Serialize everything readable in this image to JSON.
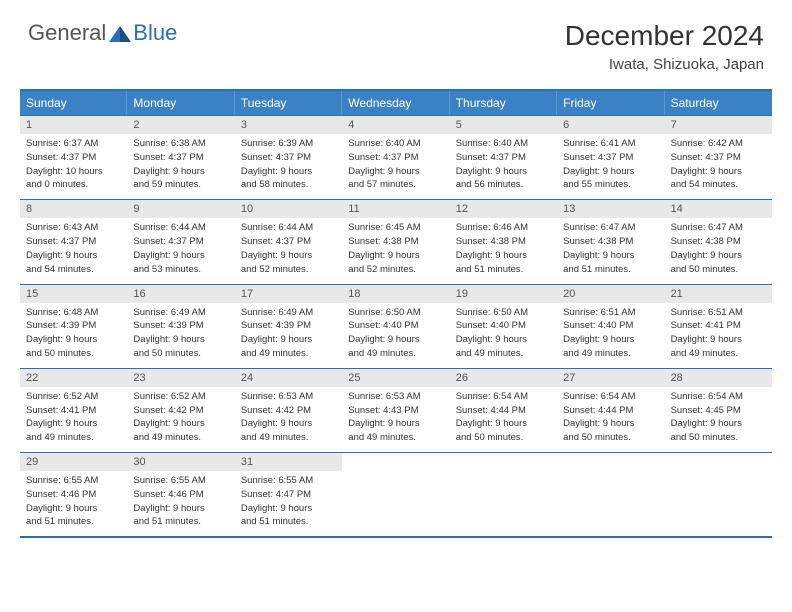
{
  "logo": {
    "part1": "General",
    "part2": "Blue"
  },
  "title": "December 2024",
  "location": "Iwata, Shizuoka, Japan",
  "colors": {
    "header_bg": "#3b82c4",
    "border": "#2a6fb5",
    "daynum_bg": "#e8e8e8",
    "text": "#333333"
  },
  "weekdays": [
    "Sunday",
    "Monday",
    "Tuesday",
    "Wednesday",
    "Thursday",
    "Friday",
    "Saturday"
  ],
  "weeks": [
    [
      {
        "n": "1",
        "sr": "Sunrise: 6:37 AM",
        "ss": "Sunset: 4:37 PM",
        "d1": "Daylight: 10 hours",
        "d2": "and 0 minutes."
      },
      {
        "n": "2",
        "sr": "Sunrise: 6:38 AM",
        "ss": "Sunset: 4:37 PM",
        "d1": "Daylight: 9 hours",
        "d2": "and 59 minutes."
      },
      {
        "n": "3",
        "sr": "Sunrise: 6:39 AM",
        "ss": "Sunset: 4:37 PM",
        "d1": "Daylight: 9 hours",
        "d2": "and 58 minutes."
      },
      {
        "n": "4",
        "sr": "Sunrise: 6:40 AM",
        "ss": "Sunset: 4:37 PM",
        "d1": "Daylight: 9 hours",
        "d2": "and 57 minutes."
      },
      {
        "n": "5",
        "sr": "Sunrise: 6:40 AM",
        "ss": "Sunset: 4:37 PM",
        "d1": "Daylight: 9 hours",
        "d2": "and 56 minutes."
      },
      {
        "n": "6",
        "sr": "Sunrise: 6:41 AM",
        "ss": "Sunset: 4:37 PM",
        "d1": "Daylight: 9 hours",
        "d2": "and 55 minutes."
      },
      {
        "n": "7",
        "sr": "Sunrise: 6:42 AM",
        "ss": "Sunset: 4:37 PM",
        "d1": "Daylight: 9 hours",
        "d2": "and 54 minutes."
      }
    ],
    [
      {
        "n": "8",
        "sr": "Sunrise: 6:43 AM",
        "ss": "Sunset: 4:37 PM",
        "d1": "Daylight: 9 hours",
        "d2": "and 54 minutes."
      },
      {
        "n": "9",
        "sr": "Sunrise: 6:44 AM",
        "ss": "Sunset: 4:37 PM",
        "d1": "Daylight: 9 hours",
        "d2": "and 53 minutes."
      },
      {
        "n": "10",
        "sr": "Sunrise: 6:44 AM",
        "ss": "Sunset: 4:37 PM",
        "d1": "Daylight: 9 hours",
        "d2": "and 52 minutes."
      },
      {
        "n": "11",
        "sr": "Sunrise: 6:45 AM",
        "ss": "Sunset: 4:38 PM",
        "d1": "Daylight: 9 hours",
        "d2": "and 52 minutes."
      },
      {
        "n": "12",
        "sr": "Sunrise: 6:46 AM",
        "ss": "Sunset: 4:38 PM",
        "d1": "Daylight: 9 hours",
        "d2": "and 51 minutes."
      },
      {
        "n": "13",
        "sr": "Sunrise: 6:47 AM",
        "ss": "Sunset: 4:38 PM",
        "d1": "Daylight: 9 hours",
        "d2": "and 51 minutes."
      },
      {
        "n": "14",
        "sr": "Sunrise: 6:47 AM",
        "ss": "Sunset: 4:38 PM",
        "d1": "Daylight: 9 hours",
        "d2": "and 50 minutes."
      }
    ],
    [
      {
        "n": "15",
        "sr": "Sunrise: 6:48 AM",
        "ss": "Sunset: 4:39 PM",
        "d1": "Daylight: 9 hours",
        "d2": "and 50 minutes."
      },
      {
        "n": "16",
        "sr": "Sunrise: 6:49 AM",
        "ss": "Sunset: 4:39 PM",
        "d1": "Daylight: 9 hours",
        "d2": "and 50 minutes."
      },
      {
        "n": "17",
        "sr": "Sunrise: 6:49 AM",
        "ss": "Sunset: 4:39 PM",
        "d1": "Daylight: 9 hours",
        "d2": "and 49 minutes."
      },
      {
        "n": "18",
        "sr": "Sunrise: 6:50 AM",
        "ss": "Sunset: 4:40 PM",
        "d1": "Daylight: 9 hours",
        "d2": "and 49 minutes."
      },
      {
        "n": "19",
        "sr": "Sunrise: 6:50 AM",
        "ss": "Sunset: 4:40 PM",
        "d1": "Daylight: 9 hours",
        "d2": "and 49 minutes."
      },
      {
        "n": "20",
        "sr": "Sunrise: 6:51 AM",
        "ss": "Sunset: 4:40 PM",
        "d1": "Daylight: 9 hours",
        "d2": "and 49 minutes."
      },
      {
        "n": "21",
        "sr": "Sunrise: 6:51 AM",
        "ss": "Sunset: 4:41 PM",
        "d1": "Daylight: 9 hours",
        "d2": "and 49 minutes."
      }
    ],
    [
      {
        "n": "22",
        "sr": "Sunrise: 6:52 AM",
        "ss": "Sunset: 4:41 PM",
        "d1": "Daylight: 9 hours",
        "d2": "and 49 minutes."
      },
      {
        "n": "23",
        "sr": "Sunrise: 6:52 AM",
        "ss": "Sunset: 4:42 PM",
        "d1": "Daylight: 9 hours",
        "d2": "and 49 minutes."
      },
      {
        "n": "24",
        "sr": "Sunrise: 6:53 AM",
        "ss": "Sunset: 4:42 PM",
        "d1": "Daylight: 9 hours",
        "d2": "and 49 minutes."
      },
      {
        "n": "25",
        "sr": "Sunrise: 6:53 AM",
        "ss": "Sunset: 4:43 PM",
        "d1": "Daylight: 9 hours",
        "d2": "and 49 minutes."
      },
      {
        "n": "26",
        "sr": "Sunrise: 6:54 AM",
        "ss": "Sunset: 4:44 PM",
        "d1": "Daylight: 9 hours",
        "d2": "and 50 minutes."
      },
      {
        "n": "27",
        "sr": "Sunrise: 6:54 AM",
        "ss": "Sunset: 4:44 PM",
        "d1": "Daylight: 9 hours",
        "d2": "and 50 minutes."
      },
      {
        "n": "28",
        "sr": "Sunrise: 6:54 AM",
        "ss": "Sunset: 4:45 PM",
        "d1": "Daylight: 9 hours",
        "d2": "and 50 minutes."
      }
    ],
    [
      {
        "n": "29",
        "sr": "Sunrise: 6:55 AM",
        "ss": "Sunset: 4:46 PM",
        "d1": "Daylight: 9 hours",
        "d2": "and 51 minutes."
      },
      {
        "n": "30",
        "sr": "Sunrise: 6:55 AM",
        "ss": "Sunset: 4:46 PM",
        "d1": "Daylight: 9 hours",
        "d2": "and 51 minutes."
      },
      {
        "n": "31",
        "sr": "Sunrise: 6:55 AM",
        "ss": "Sunset: 4:47 PM",
        "d1": "Daylight: 9 hours",
        "d2": "and 51 minutes."
      },
      null,
      null,
      null,
      null
    ]
  ]
}
